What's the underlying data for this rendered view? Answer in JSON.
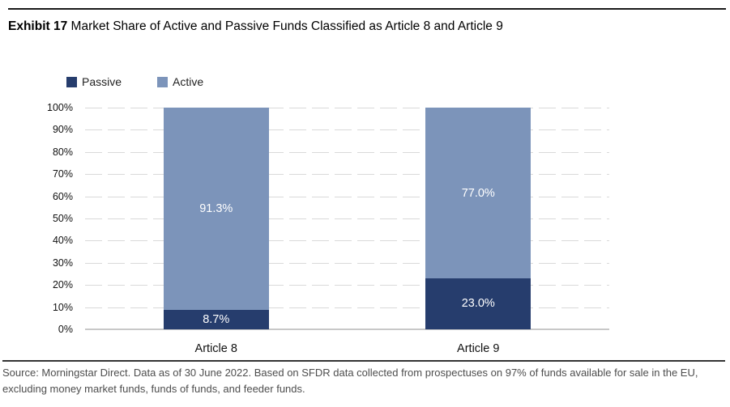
{
  "header": {
    "exhibit_label": "Exhibit 17",
    "title": "Market Share of Active and Passive Funds Classified as Article 8 and Article 9"
  },
  "legend": [
    {
      "label": "Passive",
      "color": "#263d6d"
    },
    {
      "label": "Active",
      "color": "#7c94ba"
    }
  ],
  "chart_data": {
    "type": "bar",
    "stacked": true,
    "categories": [
      "Article 8",
      "Article 9"
    ],
    "series": [
      {
        "name": "Passive",
        "color": "#263d6d",
        "values": [
          8.7,
          23.0
        ],
        "labels": [
          "8.7%",
          "23.0%"
        ]
      },
      {
        "name": "Active",
        "color": "#7c94ba",
        "values": [
          91.3,
          77.0
        ],
        "labels": [
          "91.3%",
          "77.0%"
        ]
      }
    ],
    "y_ticks": [
      "100%",
      "90%",
      "80%",
      "70%",
      "60%",
      "50%",
      "40%",
      "30%",
      "20%",
      "10%",
      "0%"
    ],
    "ylim": [
      0,
      100
    ],
    "grid": "horizontal-dashed",
    "legend_position": "top-left",
    "value_label_color": "#ffffff"
  },
  "footer": {
    "source_line1": "Source: Morningstar Direct. Data as of 30 June 2022. Based on SFDR data collected from prospectuses on 97% of funds available for sale in the EU,",
    "source_line2": "excluding money market funds, funds of funds, and feeder funds."
  }
}
